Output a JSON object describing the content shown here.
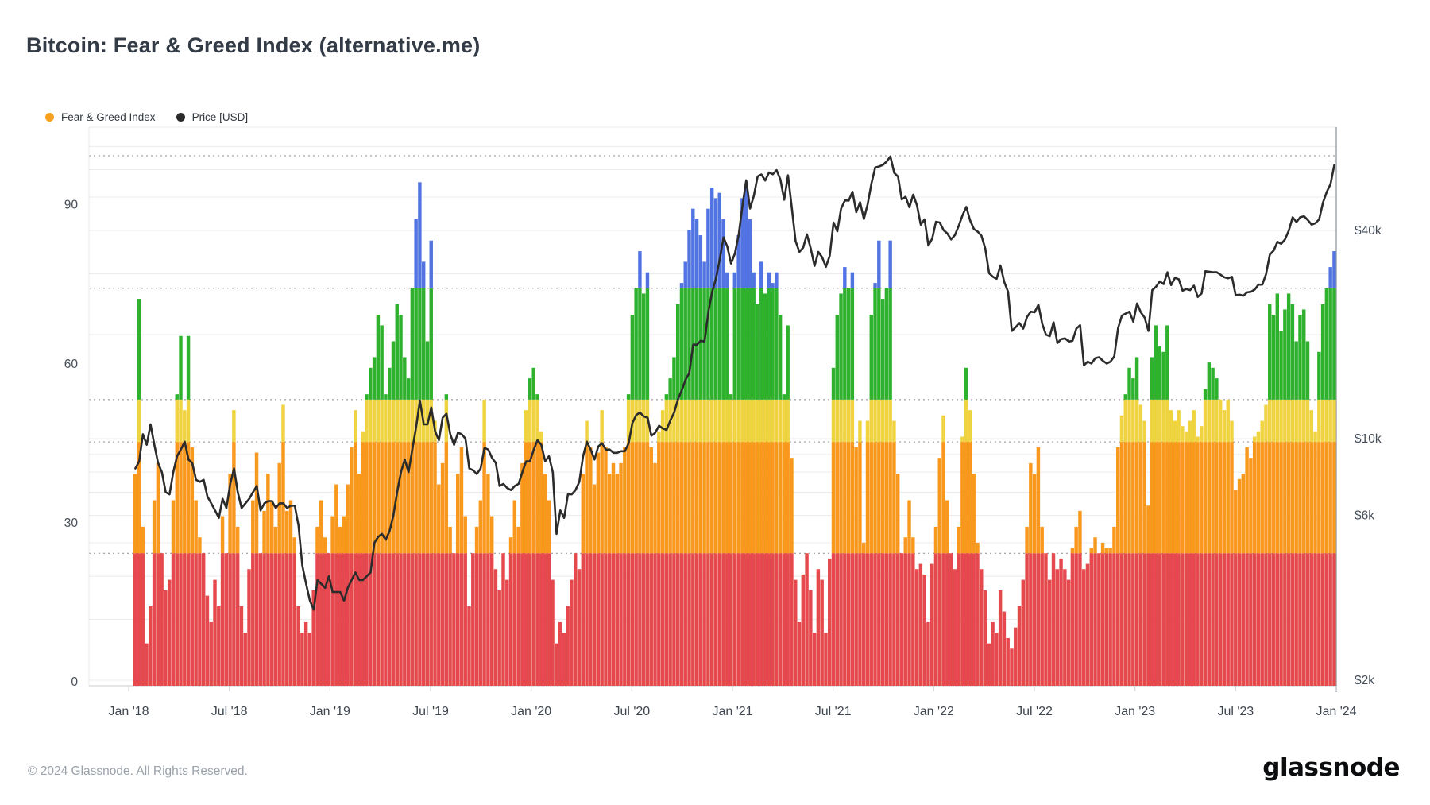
{
  "header": {
    "title": "Bitcoin: Fear & Greed Index (alternative.me)"
  },
  "legend": {
    "items": [
      {
        "label": "Fear & Greed Index",
        "color": "#f7a01f"
      },
      {
        "label": "Price [USD]",
        "color": "#2b2b2b"
      }
    ]
  },
  "footer": {
    "copyright": "© 2024 Glassnode. All Rights Reserved.",
    "logo": "glassnode"
  },
  "chart_data": {
    "type": "bar",
    "title": "Bitcoin: Fear & Greed Index (alternative.me)",
    "start_date": "2018-02-01",
    "interval_days": 7,
    "x_ticks": [
      "Jan '18",
      "Jul '18",
      "Jan '19",
      "Jul '19",
      "Jan '20",
      "Jul '20",
      "Jan '21",
      "Jul '21",
      "Jan '22",
      "Jul '22",
      "Jan '23",
      "Jul '23",
      "Jan '24"
    ],
    "left_axis": {
      "label": "Fear & Greed Index",
      "ticks": [
        0,
        30,
        60,
        90
      ],
      "range": [
        0,
        105
      ]
    },
    "right_axis": {
      "label": "Price [USD]",
      "scale": "log",
      "labeled_ticks": [
        {
          "value": 2,
          "label": "$2k"
        },
        {
          "value": 6,
          "label": "$6k"
        },
        {
          "value": 10,
          "label": "$10k"
        },
        {
          "value": 40,
          "label": "$40k"
        }
      ],
      "gridlines_k": [
        2,
        3,
        4,
        5,
        6,
        7,
        8,
        9,
        10,
        20,
        30,
        40,
        50,
        60,
        70
      ]
    },
    "threshold_lines": [
      25,
      46,
      54,
      75,
      100
    ],
    "bands": [
      {
        "name": "extreme-fear",
        "upTo": 25,
        "color": "#e5494d"
      },
      {
        "name": "fear",
        "upTo": 46,
        "color": "#f8981d"
      },
      {
        "name": "neutral",
        "upTo": 54,
        "color": "#f0d340"
      },
      {
        "name": "greed",
        "upTo": 75,
        "color": "#2eb22e"
      },
      {
        "name": "extreme-greed",
        "upTo": 101,
        "color": "#5274e2"
      }
    ],
    "series": [
      {
        "name": "Fear & Greed Index",
        "type": "bar",
        "axis": "left",
        "values": [
          40,
          73,
          30,
          8,
          15,
          35,
          42,
          25,
          18,
          20,
          35,
          55,
          66,
          52,
          66,
          45,
          35,
          28,
          25,
          17,
          12,
          20,
          15,
          32,
          25,
          40,
          52,
          30,
          15,
          10,
          22,
          35,
          44,
          25,
          33,
          40,
          35,
          30,
          42,
          53,
          33,
          35,
          28,
          15,
          10,
          12,
          10,
          18,
          30,
          35,
          28,
          25,
          32,
          38,
          30,
          32,
          38,
          45,
          52,
          40,
          48,
          55,
          60,
          62,
          70,
          68,
          55,
          60,
          65,
          72,
          70,
          62,
          58,
          75,
          88,
          95,
          80,
          65,
          84,
          50,
          38,
          42,
          55,
          30,
          25,
          40,
          45,
          32,
          15,
          25,
          30,
          35,
          54,
          40,
          32,
          22,
          18,
          25,
          20,
          28,
          35,
          30,
          42,
          52,
          58,
          60,
          55,
          48,
          40,
          35,
          20,
          8,
          12,
          10,
          15,
          20,
          25,
          22,
          40,
          50,
          45,
          38,
          44,
          52,
          45,
          40,
          42,
          40,
          42,
          45,
          55,
          70,
          75,
          82,
          74,
          78,
          45,
          42,
          48,
          52,
          55,
          58,
          62,
          72,
          76,
          80,
          86,
          90,
          88,
          85,
          80,
          90,
          94,
          92,
          93,
          88,
          78,
          55,
          78,
          85,
          92,
          94,
          88,
          78,
          72,
          80,
          74,
          78,
          76,
          78,
          70,
          55,
          68,
          43,
          20,
          12,
          21,
          25,
          18,
          10,
          22,
          20,
          10,
          24,
          60,
          70,
          74,
          79,
          75,
          78,
          45,
          50,
          27,
          50,
          70,
          76,
          84,
          73,
          75,
          84,
          50,
          40,
          25,
          28,
          35,
          28,
          22,
          23,
          21,
          12,
          23,
          30,
          43,
          51,
          35,
          25,
          22,
          30,
          47,
          60,
          52,
          40,
          27,
          22,
          18,
          8,
          12,
          10,
          18,
          14,
          9,
          7,
          11,
          15,
          20,
          30,
          42,
          40,
          45,
          30,
          25,
          20,
          25,
          22,
          24,
          22,
          20,
          26,
          30,
          33,
          22,
          23,
          26,
          28,
          25,
          27,
          26,
          26,
          30,
          45,
          51,
          55,
          60,
          58,
          62,
          53,
          50,
          34,
          62,
          68,
          64,
          63,
          68,
          52,
          50,
          52,
          49,
          48,
          50,
          52,
          47,
          49,
          56,
          61,
          60,
          58,
          54,
          52,
          54,
          50,
          37,
          39,
          40,
          45,
          43,
          47,
          48,
          50,
          53,
          72,
          70,
          74,
          67,
          71,
          74,
          72,
          65,
          70,
          71,
          65,
          52,
          48,
          63,
          72,
          75,
          79,
          82
        ]
      },
      {
        "name": "Price [USD]",
        "type": "line",
        "axis": "right",
        "unit": "thousand USD",
        "values": [
          8.2,
          8.6,
          10.3,
          9.6,
          11.0,
          9.6,
          8.5,
          8.0,
          7.0,
          6.9,
          8.0,
          8.9,
          9.3,
          9.8,
          8.7,
          8.5,
          7.6,
          7.5,
          7.6,
          6.8,
          6.5,
          6.2,
          5.9,
          6.7,
          6.3,
          7.4,
          8.2,
          7.0,
          6.3,
          6.5,
          6.7,
          7.0,
          7.3,
          6.2,
          6.5,
          6.6,
          6.6,
          6.3,
          6.5,
          6.5,
          6.3,
          6.4,
          6.4,
          5.6,
          4.3,
          3.8,
          3.4,
          3.2,
          3.9,
          3.8,
          3.7,
          4.0,
          3.6,
          3.6,
          3.6,
          3.4,
          3.7,
          3.9,
          4.1,
          3.9,
          3.9,
          4.0,
          4.1,
          5.0,
          5.2,
          5.3,
          5.1,
          5.4,
          6.0,
          7.0,
          8.0,
          8.7,
          8.0,
          9.3,
          10.8,
          12.9,
          11.0,
          11.0,
          12.3,
          10.5,
          9.9,
          11.5,
          11.8,
          10.3,
          9.6,
          10.4,
          10.3,
          10.0,
          8.2,
          8.1,
          7.9,
          8.2,
          9.4,
          9.3,
          8.8,
          8.5,
          7.3,
          7.4,
          7.2,
          7.1,
          7.3,
          7.4,
          8.0,
          8.6,
          8.6,
          9.3,
          9.9,
          9.6,
          8.6,
          8.9,
          8.0,
          5.3,
          6.2,
          5.9,
          6.9,
          6.9,
          7.1,
          7.5,
          8.9,
          9.8,
          9.3,
          8.7,
          9.5,
          9.7,
          9.3,
          9.3,
          9.1,
          9.1,
          9.2,
          9.2,
          9.7,
          11.1,
          11.7,
          11.9,
          11.6,
          11.5,
          10.2,
          10.4,
          10.9,
          10.7,
          10.6,
          11.3,
          11.9,
          13.0,
          13.8,
          14.8,
          15.5,
          18.7,
          18.7,
          19.2,
          19.1,
          23.2,
          26.5,
          29.0,
          33.0,
          38.2,
          36.0,
          32.1,
          34.3,
          38.9,
          47.2,
          55.9,
          46.3,
          50.4,
          57.4,
          58.1,
          55.8,
          58.9,
          58.2,
          59.8,
          56.2,
          49.1,
          57.8,
          46.7,
          37.3,
          34.7,
          35.7,
          39.0,
          35.5,
          31.6,
          34.7,
          33.5,
          31.4,
          33.8,
          42.2,
          39.8,
          46.3,
          48.9,
          48.8,
          51.8,
          45.2,
          48.3,
          43.2,
          47.7,
          54.7,
          60.9,
          61.3,
          61.9,
          63.3,
          65.5,
          58.7,
          57.3,
          49.2,
          50.1,
          46.7,
          50.8,
          47.3,
          41.6,
          43.1,
          36.2,
          37.9,
          42.4,
          42.2,
          40.1,
          39.2,
          37.7,
          38.8,
          41.3,
          44.3,
          46.8,
          42.8,
          40.4,
          39.7,
          38.6,
          35.5,
          30.1,
          29.4,
          29.0,
          31.7,
          28.4,
          26.6,
          20.5,
          21.0,
          21.6,
          20.8,
          22.5,
          23.3,
          23.2,
          24.4,
          21.5,
          20.0,
          19.8,
          21.7,
          18.9,
          19.4,
          19.5,
          19.1,
          19.2,
          20.8,
          21.3,
          16.3,
          16.7,
          16.5,
          17.1,
          17.2,
          16.8,
          16.5,
          16.7,
          17.3,
          20.9,
          22.7,
          23.0,
          23.3,
          21.8,
          24.6,
          23.2,
          22.4,
          20.5,
          26.9,
          27.5,
          28.5,
          28.0,
          30.3,
          27.8,
          29.2,
          28.9,
          26.8,
          27.1,
          26.9,
          27.7,
          25.7,
          26.3,
          30.5,
          30.4,
          30.3,
          30.3,
          29.8,
          29.3,
          29.1,
          29.4,
          26.0,
          26.1,
          25.9,
          26.5,
          26.6,
          27.0,
          27.9,
          27.9,
          29.9,
          34.1,
          35.0,
          37.1,
          36.6,
          37.7,
          40.0,
          43.7,
          42.3,
          43.7,
          44.0,
          42.9,
          41.6,
          42.0,
          43.1,
          48.2,
          51.8,
          54.5,
          62.0
        ]
      }
    ]
  }
}
